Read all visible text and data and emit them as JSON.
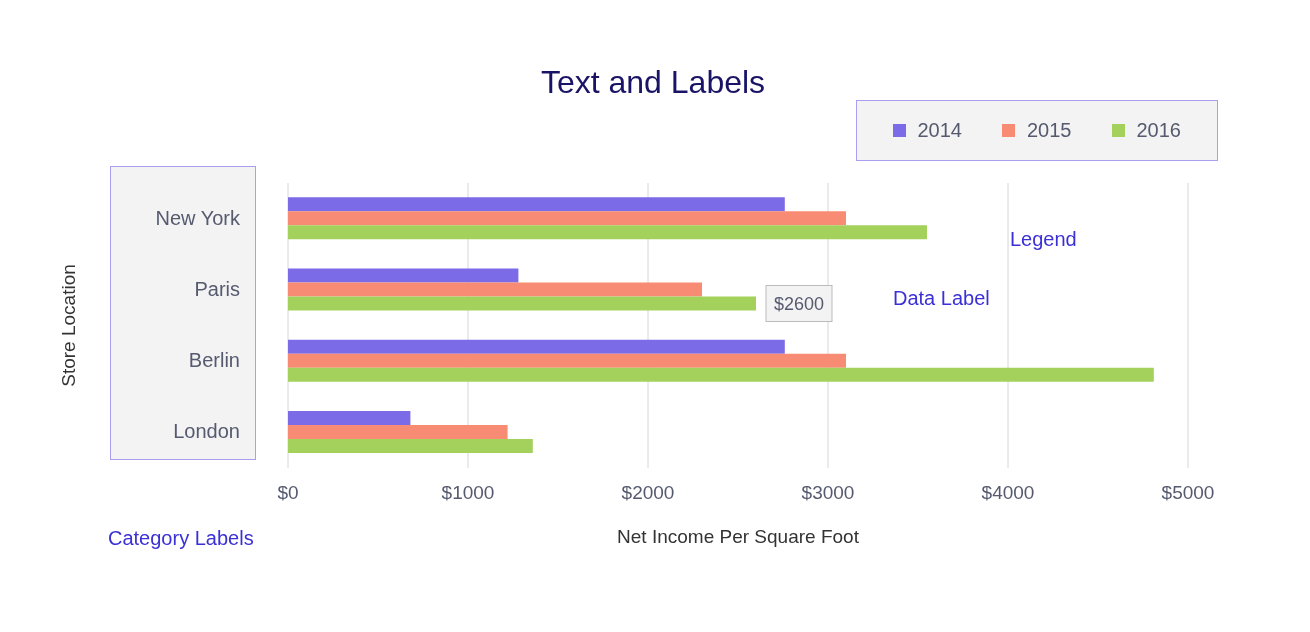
{
  "chart_data": {
    "type": "bar",
    "orientation": "horizontal",
    "title": "Text and Labels",
    "xlabel": "Net Income Per Square Foot",
    "ylabel": "Store Location",
    "categories": [
      "New York",
      "Paris",
      "Berlin",
      "London"
    ],
    "series": [
      {
        "name": "2014",
        "color": "#7b6be6",
        "values": [
          2760,
          1280,
          2760,
          680
        ]
      },
      {
        "name": "2015",
        "color": "#f78b73",
        "values": [
          3100,
          2300,
          3100,
          1220
        ]
      },
      {
        "name": "2016",
        "color": "#a3d15c",
        "values": [
          3550,
          2600,
          4810,
          1360
        ],
        "value_labels": [
          null,
          "$2600",
          null,
          null
        ]
      }
    ],
    "xlim": [
      0,
      5000
    ],
    "xticks": [
      {
        "value": 0,
        "label": "$0"
      },
      {
        "value": 1000,
        "label": "$1000"
      },
      {
        "value": 2000,
        "label": "$2000"
      },
      {
        "value": 3000,
        "label": "$3000"
      },
      {
        "value": 4000,
        "label": "$4000"
      },
      {
        "value": 5000,
        "label": "$5000"
      }
    ],
    "grid": "x",
    "legend": "top right",
    "annotations": [
      "Legend",
      "Data Label",
      "Category Labels"
    ]
  }
}
